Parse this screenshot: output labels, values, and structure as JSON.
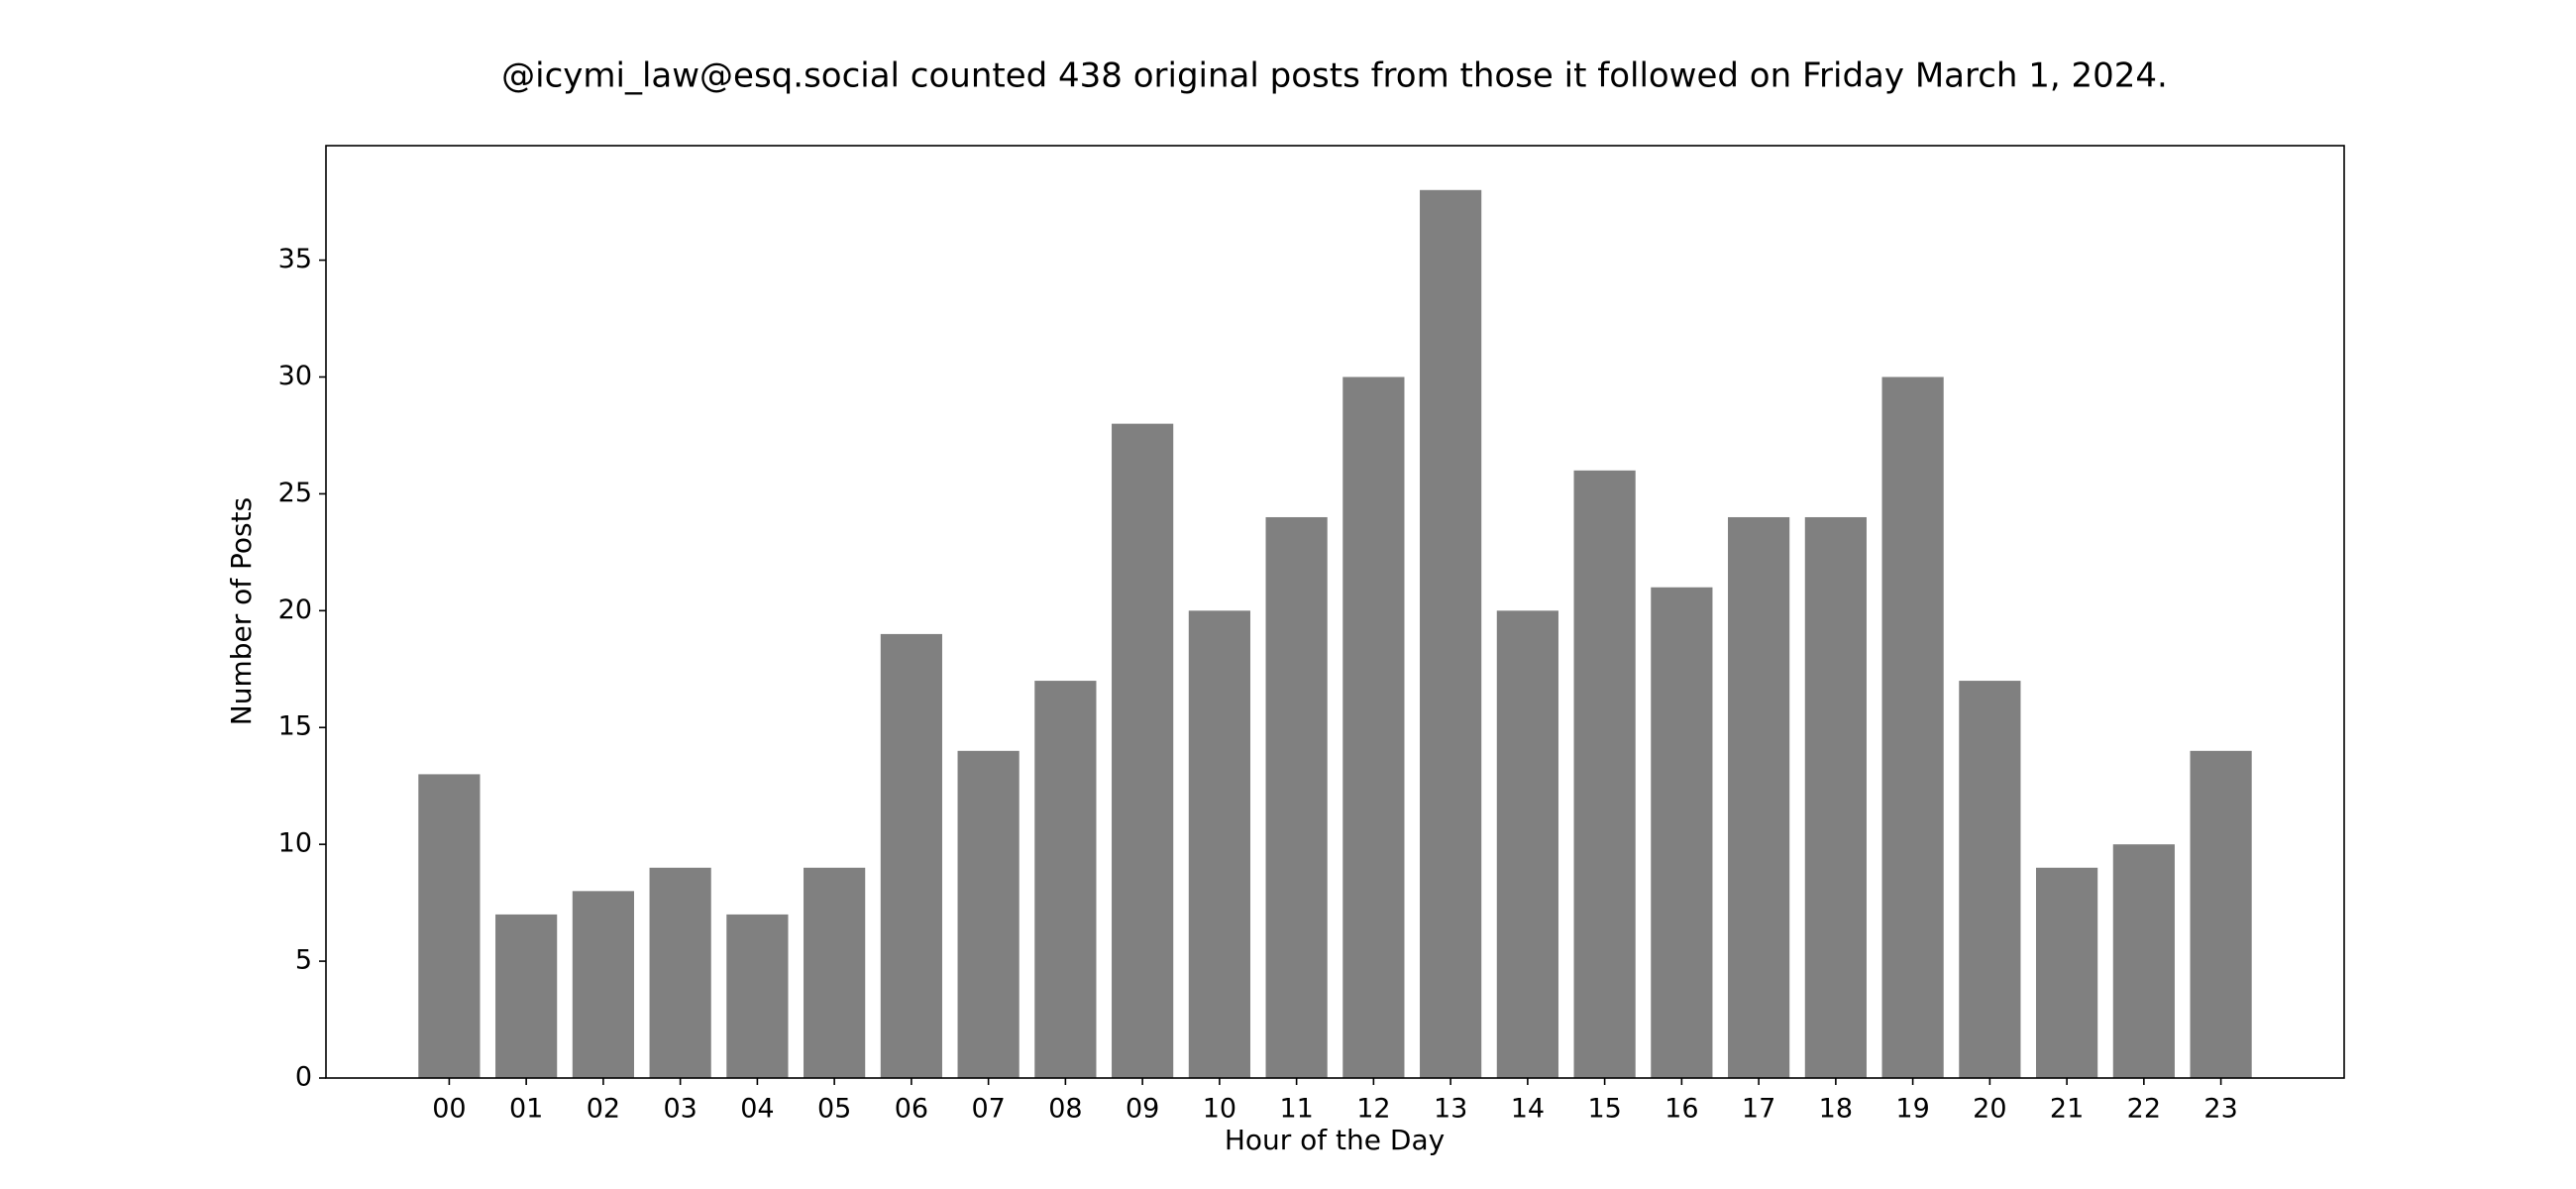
{
  "chart_data": {
    "type": "bar",
    "title": "@icymi_law@esq.social counted 438 original posts from those it followed on Friday March 1, 2024.",
    "x_label": "Hour of the Day",
    "y_label": "Number of Posts",
    "categories": [
      "00",
      "01",
      "02",
      "03",
      "04",
      "05",
      "06",
      "07",
      "08",
      "09",
      "10",
      "11",
      "12",
      "13",
      "14",
      "15",
      "16",
      "17",
      "18",
      "19",
      "20",
      "21",
      "22",
      "23"
    ],
    "values": [
      13,
      7,
      8,
      9,
      7,
      9,
      19,
      14,
      17,
      28,
      20,
      24,
      30,
      38,
      20,
      26,
      21,
      24,
      24,
      30,
      17,
      9,
      10,
      14
    ],
    "color": "#808080",
    "ylim": [
      0,
      39.9
    ],
    "yticks": [
      0,
      5,
      10,
      15,
      20,
      25,
      30,
      35
    ],
    "grid": false
  }
}
